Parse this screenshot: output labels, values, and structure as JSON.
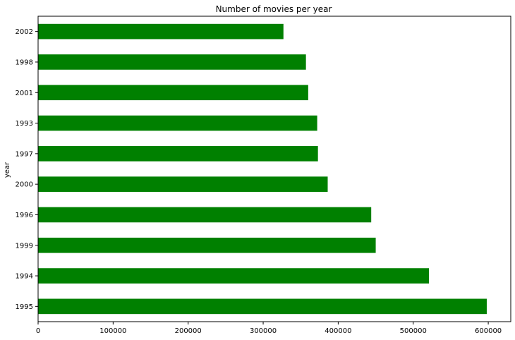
{
  "chart_data": {
    "type": "bar",
    "orientation": "horizontal",
    "title": "Number of movies per year",
    "xlabel": "",
    "ylabel": "year",
    "categories": [
      "1995",
      "1994",
      "1999",
      "1996",
      "2000",
      "1997",
      "1993",
      "2001",
      "1998",
      "2002"
    ],
    "values": [
      598000,
      521000,
      450000,
      444000,
      386000,
      373000,
      372000,
      360000,
      357000,
      327000
    ],
    "xlim": [
      0,
      630000
    ],
    "xticks": [
      0,
      100000,
      200000,
      300000,
      400000,
      500000,
      600000
    ],
    "grid": false,
    "colors": {
      "bar": "#008000",
      "axis": "#000000",
      "background": "#ffffff"
    }
  }
}
